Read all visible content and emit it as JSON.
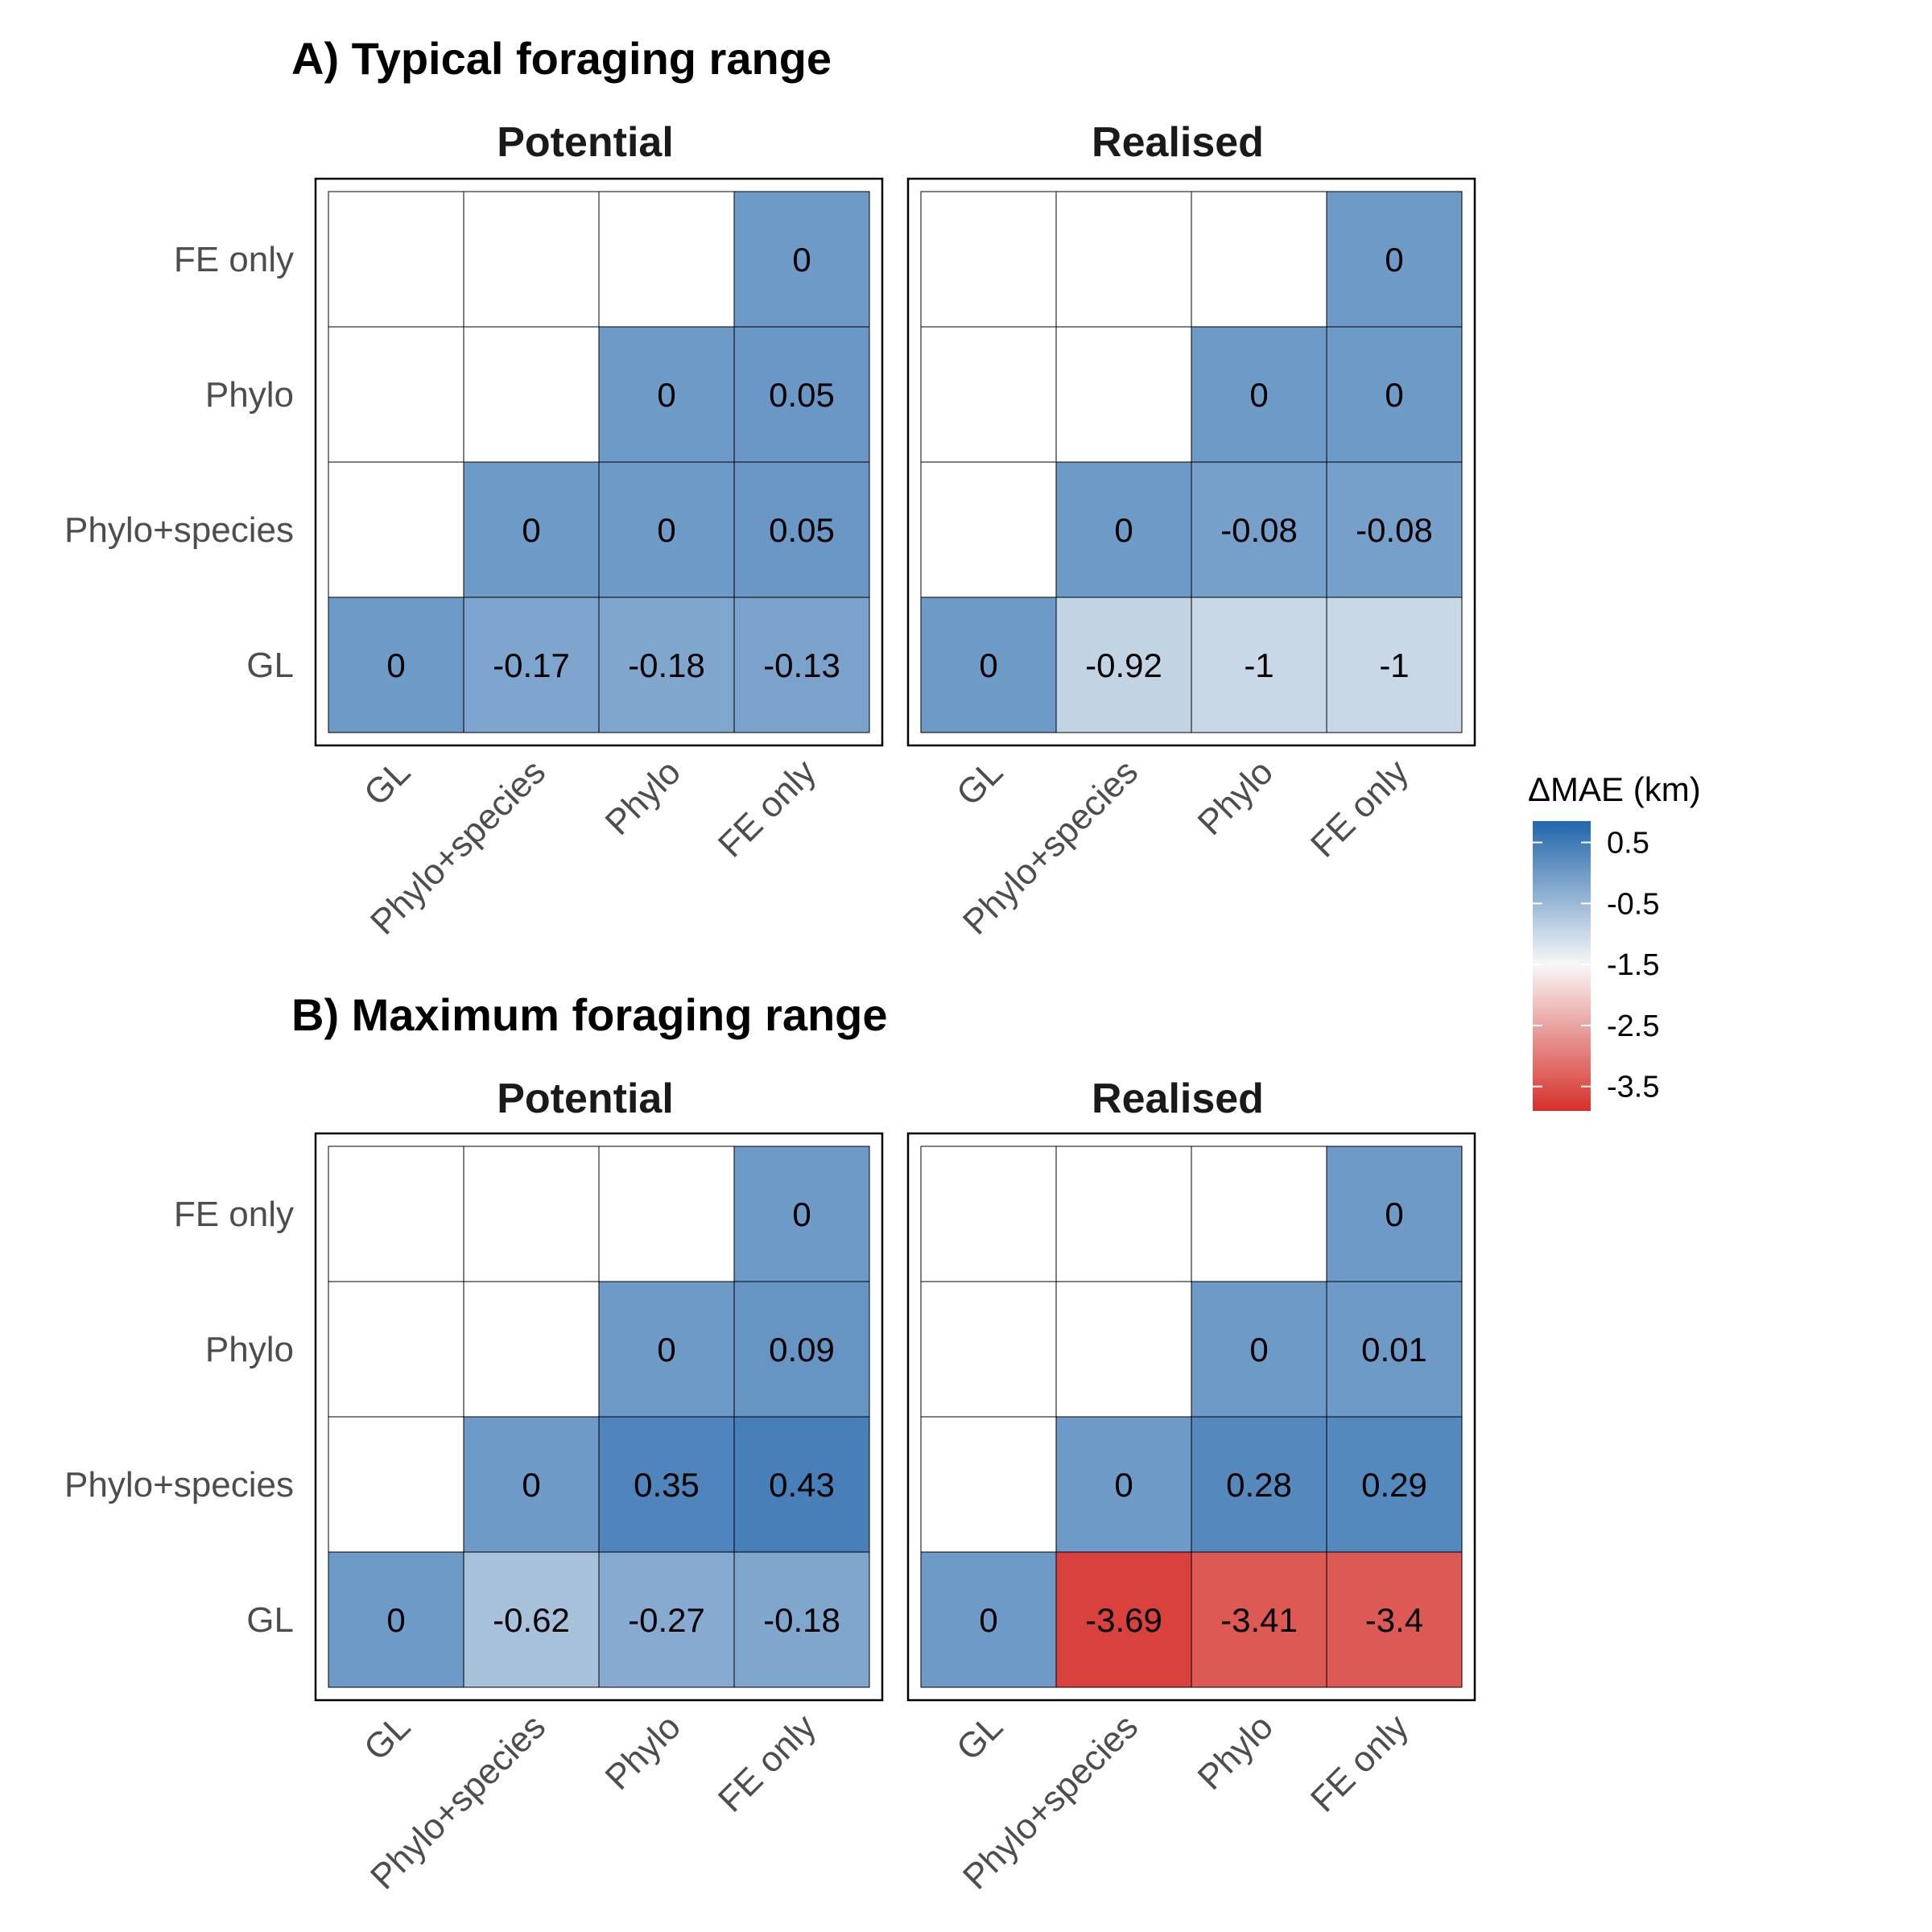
{
  "chart_data": [
    {
      "type": "heatmap",
      "title": "A) Typical foraging range",
      "rows": [
        "GL",
        "Phylo+species",
        "Phylo",
        "FE only"
      ],
      "cols": [
        "GL",
        "Phylo+species",
        "Phylo",
        "FE only"
      ],
      "panels": [
        {
          "name": "Potential",
          "cells": [
            {
              "row": "GL",
              "col": "GL",
              "value": 0
            },
            {
              "row": "GL",
              "col": "Phylo+species",
              "value": -0.17
            },
            {
              "row": "GL",
              "col": "Phylo",
              "value": -0.18
            },
            {
              "row": "GL",
              "col": "FE only",
              "value": -0.13
            },
            {
              "row": "Phylo+species",
              "col": "Phylo+species",
              "value": 0
            },
            {
              "row": "Phylo+species",
              "col": "Phylo",
              "value": 0
            },
            {
              "row": "Phylo+species",
              "col": "FE only",
              "value": 0.05
            },
            {
              "row": "Phylo",
              "col": "Phylo",
              "value": 0
            },
            {
              "row": "Phylo",
              "col": "FE only",
              "value": 0.05
            },
            {
              "row": "FE only",
              "col": "FE only",
              "value": 0
            }
          ]
        },
        {
          "name": "Realised",
          "cells": [
            {
              "row": "GL",
              "col": "GL",
              "value": 0
            },
            {
              "row": "GL",
              "col": "Phylo+species",
              "value": -0.92
            },
            {
              "row": "GL",
              "col": "Phylo",
              "value": -1
            },
            {
              "row": "GL",
              "col": "FE only",
              "value": -1
            },
            {
              "row": "Phylo+species",
              "col": "Phylo+species",
              "value": 0
            },
            {
              "row": "Phylo+species",
              "col": "Phylo",
              "value": -0.08
            },
            {
              "row": "Phylo+species",
              "col": "FE only",
              "value": -0.08
            },
            {
              "row": "Phylo",
              "col": "Phylo",
              "value": 0
            },
            {
              "row": "Phylo",
              "col": "FE only",
              "value": 0
            },
            {
              "row": "FE only",
              "col": "FE only",
              "value": 0
            }
          ]
        }
      ]
    },
    {
      "type": "heatmap",
      "title": "B) Maximum foraging range",
      "rows": [
        "GL",
        "Phylo+species",
        "Phylo",
        "FE only"
      ],
      "cols": [
        "GL",
        "Phylo+species",
        "Phylo",
        "FE only"
      ],
      "panels": [
        {
          "name": "Potential",
          "cells": [
            {
              "row": "GL",
              "col": "GL",
              "value": 0
            },
            {
              "row": "GL",
              "col": "Phylo+species",
              "value": -0.62
            },
            {
              "row": "GL",
              "col": "Phylo",
              "value": -0.27
            },
            {
              "row": "GL",
              "col": "FE only",
              "value": -0.18
            },
            {
              "row": "Phylo+species",
              "col": "Phylo+species",
              "value": 0
            },
            {
              "row": "Phylo+species",
              "col": "Phylo",
              "value": 0.35
            },
            {
              "row": "Phylo+species",
              "col": "FE only",
              "value": 0.43
            },
            {
              "row": "Phylo",
              "col": "Phylo",
              "value": 0
            },
            {
              "row": "Phylo",
              "col": "FE only",
              "value": 0.09
            },
            {
              "row": "FE only",
              "col": "FE only",
              "value": 0
            }
          ]
        },
        {
          "name": "Realised",
          "cells": [
            {
              "row": "GL",
              "col": "GL",
              "value": 0
            },
            {
              "row": "GL",
              "col": "Phylo+species",
              "value": -3.69
            },
            {
              "row": "GL",
              "col": "Phylo",
              "value": -3.41
            },
            {
              "row": "GL",
              "col": "FE only",
              "value": -3.4
            },
            {
              "row": "Phylo+species",
              "col": "Phylo+species",
              "value": 0
            },
            {
              "row": "Phylo+species",
              "col": "Phylo",
              "value": 0.28
            },
            {
              "row": "Phylo+species",
              "col": "FE only",
              "value": 0.29
            },
            {
              "row": "Phylo",
              "col": "Phylo",
              "value": 0
            },
            {
              "row": "Phylo",
              "col": "FE only",
              "value": 0.01
            },
            {
              "row": "FE only",
              "col": "FE only",
              "value": 0
            }
          ]
        }
      ]
    }
  ],
  "legend": {
    "title": "ΔMAE (km)",
    "range": [
      -3.9,
      0.85
    ],
    "ticks": [
      0.5,
      -0.5,
      -1.5,
      -2.5,
      -3.5
    ],
    "tick_labels": [
      "0.5",
      "-0.5",
      "-1.5",
      "-2.5",
      "-3.5"
    ],
    "colors": {
      "high": "#2166ac",
      "mid": "#f7f7f7",
      "low": "#d6302a",
      "midpoint": -1.5,
      "empty_cell": "#ffffff",
      "grid": "#000000"
    }
  }
}
